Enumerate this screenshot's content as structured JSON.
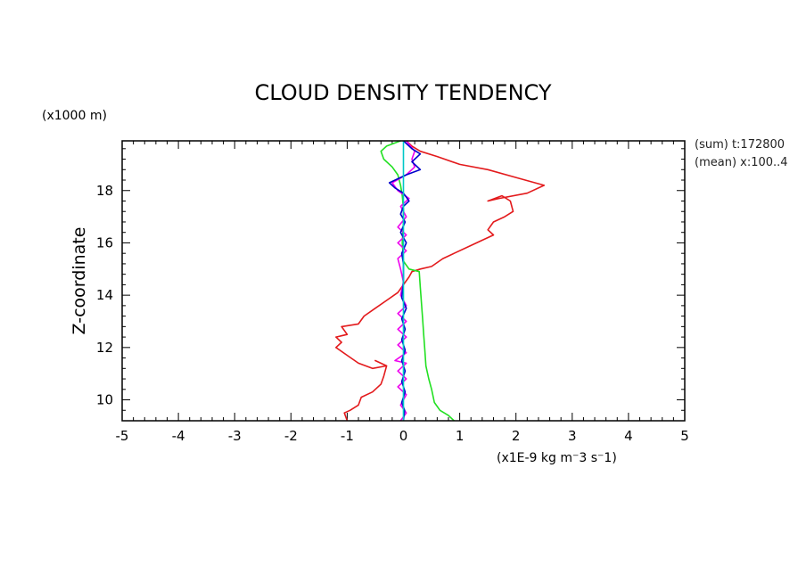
{
  "chart_data": {
    "type": "line",
    "title": "CLOUD DENSITY TENDENCY",
    "xlabel": "(x1E-9 kg m⁻3 s⁻1)",
    "ylabel": "Z-coordinate",
    "yunit": "(x1000 m)",
    "xlim": [
      -5,
      5
    ],
    "ylim": [
      9.2,
      19.9
    ],
    "xticks": [
      "-5",
      "-4",
      "-3",
      "-2",
      "-1",
      "0",
      "1",
      "2",
      "3",
      "4",
      "5"
    ],
    "yticks": [
      "10",
      "12",
      "14",
      "16",
      "18"
    ],
    "annotations": [
      "(sum) t:172800",
      "(mean) x:100..4"
    ],
    "series": [
      {
        "color": "#e31a1c",
        "points": [
          [
            -1.0,
            9.2
          ],
          [
            -1.05,
            9.5
          ],
          [
            -0.95,
            9.6
          ],
          [
            -0.8,
            9.8
          ],
          [
            -0.75,
            10.1
          ],
          [
            -0.55,
            10.3
          ],
          [
            -0.4,
            10.6
          ],
          [
            -0.35,
            10.9
          ],
          [
            -0.3,
            11.3
          ],
          [
            -0.5,
            11.5
          ],
          [
            -0.3,
            11.3
          ],
          [
            -0.55,
            11.2
          ],
          [
            -0.8,
            11.4
          ],
          [
            -1.0,
            11.7
          ],
          [
            -1.2,
            12.0
          ],
          [
            -1.1,
            12.2
          ],
          [
            -1.2,
            12.4
          ],
          [
            -1.0,
            12.5
          ],
          [
            -1.1,
            12.8
          ],
          [
            -0.8,
            12.9
          ],
          [
            -0.7,
            13.2
          ],
          [
            -0.5,
            13.5
          ],
          [
            -0.3,
            13.8
          ],
          [
            -0.1,
            14.1
          ],
          [
            0.0,
            14.4
          ],
          [
            0.1,
            14.7
          ],
          [
            0.15,
            14.9
          ],
          [
            0.3,
            15.0
          ],
          [
            0.5,
            15.1
          ],
          [
            0.7,
            15.4
          ],
          [
            0.9,
            15.6
          ],
          [
            1.2,
            15.9
          ],
          [
            1.4,
            16.1
          ],
          [
            1.6,
            16.3
          ],
          [
            1.5,
            16.5
          ],
          [
            1.6,
            16.8
          ],
          [
            1.8,
            17.0
          ],
          [
            1.95,
            17.2
          ],
          [
            1.9,
            17.6
          ],
          [
            1.75,
            17.8
          ],
          [
            1.5,
            17.6
          ],
          [
            1.7,
            17.7
          ],
          [
            2.2,
            17.9
          ],
          [
            2.5,
            18.2
          ],
          [
            2.0,
            18.5
          ],
          [
            1.5,
            18.8
          ],
          [
            1.0,
            19.0
          ],
          [
            0.6,
            19.3
          ],
          [
            0.3,
            19.5
          ],
          [
            0.15,
            19.7
          ],
          [
            0.05,
            19.9
          ]
        ]
      },
      {
        "color": "#22e022",
        "points": [
          [
            0.9,
            9.2
          ],
          [
            0.8,
            9.4
          ],
          [
            0.65,
            9.6
          ],
          [
            0.55,
            9.9
          ],
          [
            0.5,
            10.4
          ],
          [
            0.45,
            10.8
          ],
          [
            0.4,
            11.3
          ],
          [
            0.38,
            11.9
          ],
          [
            0.36,
            12.5
          ],
          [
            0.34,
            13.1
          ],
          [
            0.32,
            13.7
          ],
          [
            0.3,
            14.3
          ],
          [
            0.28,
            14.9
          ],
          [
            0.1,
            15.0
          ],
          [
            0.0,
            15.3
          ],
          [
            -0.02,
            16.0
          ],
          [
            0.0,
            16.8
          ],
          [
            0.0,
            17.3
          ],
          [
            -0.02,
            17.8
          ],
          [
            -0.05,
            18.2
          ],
          [
            -0.1,
            18.6
          ],
          [
            -0.2,
            18.9
          ],
          [
            -0.35,
            19.2
          ],
          [
            -0.4,
            19.5
          ],
          [
            -0.3,
            19.7
          ],
          [
            -0.05,
            19.9
          ]
        ]
      },
      {
        "color": "#ee00ee",
        "points": [
          [
            -0.05,
            9.2
          ],
          [
            0.05,
            9.5
          ],
          [
            -0.05,
            9.8
          ],
          [
            0.05,
            10.2
          ],
          [
            -0.1,
            10.5
          ],
          [
            0.05,
            10.8
          ],
          [
            -0.1,
            11.1
          ],
          [
            0.05,
            11.4
          ],
          [
            -0.15,
            11.5
          ],
          [
            0.05,
            11.8
          ],
          [
            -0.1,
            12.1
          ],
          [
            0.05,
            12.4
          ],
          [
            -0.1,
            12.7
          ],
          [
            0.05,
            13.0
          ],
          [
            -0.1,
            13.3
          ],
          [
            0.05,
            13.6
          ],
          [
            -0.05,
            14.0
          ],
          [
            0.0,
            14.5
          ],
          [
            -0.05,
            15.0
          ],
          [
            -0.1,
            15.4
          ],
          [
            0.05,
            15.7
          ],
          [
            -0.1,
            16.0
          ],
          [
            0.05,
            16.3
          ],
          [
            -0.1,
            16.6
          ],
          [
            0.05,
            17.0
          ],
          [
            -0.05,
            17.4
          ],
          [
            0.1,
            17.7
          ],
          [
            -0.1,
            18.0
          ],
          [
            -0.2,
            18.3
          ],
          [
            0.05,
            18.6
          ],
          [
            0.2,
            18.9
          ],
          [
            0.15,
            19.2
          ],
          [
            0.2,
            19.5
          ],
          [
            0.05,
            19.9
          ]
        ]
      },
      {
        "color": "#0000cc",
        "points": [
          [
            0.0,
            9.2
          ],
          [
            0.02,
            9.6
          ],
          [
            -0.03,
            9.9
          ],
          [
            0.03,
            10.3
          ],
          [
            -0.03,
            10.7
          ],
          [
            0.03,
            11.1
          ],
          [
            -0.03,
            11.5
          ],
          [
            0.03,
            11.9
          ],
          [
            -0.03,
            12.3
          ],
          [
            0.03,
            12.7
          ],
          [
            -0.03,
            13.1
          ],
          [
            0.05,
            13.5
          ],
          [
            -0.03,
            13.9
          ],
          [
            0.0,
            14.5
          ],
          [
            0.0,
            15.2
          ],
          [
            -0.03,
            15.6
          ],
          [
            0.05,
            16.0
          ],
          [
            -0.05,
            16.4
          ],
          [
            0.03,
            16.8
          ],
          [
            -0.05,
            17.1
          ],
          [
            0.0,
            17.4
          ],
          [
            0.1,
            17.6
          ],
          [
            0.0,
            17.9
          ],
          [
            -0.15,
            18.1
          ],
          [
            -0.25,
            18.3
          ],
          [
            0.05,
            18.6
          ],
          [
            0.3,
            18.8
          ],
          [
            0.15,
            19.1
          ],
          [
            0.3,
            19.4
          ],
          [
            0.15,
            19.6
          ],
          [
            0.0,
            19.9
          ]
        ]
      },
      {
        "color": "#00c8c8",
        "points": [
          [
            0.0,
            9.2
          ],
          [
            0.0,
            12.0
          ],
          [
            0.0,
            15.0
          ],
          [
            0.0,
            18.0
          ],
          [
            0.0,
            19.9
          ]
        ]
      }
    ]
  }
}
